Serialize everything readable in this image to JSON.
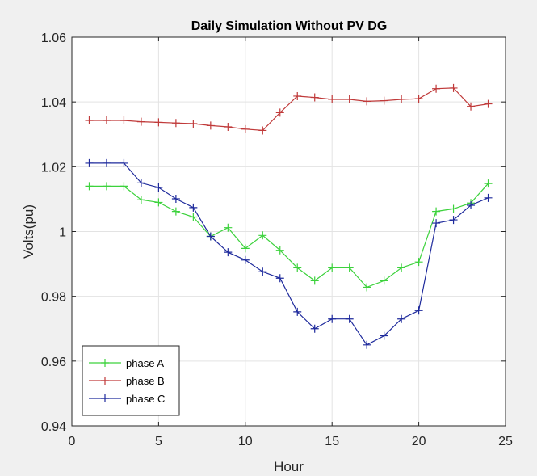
{
  "chart_data": {
    "type": "line",
    "title": "Daily Simulation Without PV DG",
    "xlabel": "Hour",
    "ylabel": "Volts(pu)",
    "xlim": [
      0,
      25
    ],
    "ylim": [
      0.94,
      1.06
    ],
    "x_ticks": [
      0,
      5,
      10,
      15,
      20,
      25
    ],
    "x_tick_labels": [
      "0",
      "5",
      "10",
      "15",
      "20",
      "25"
    ],
    "y_ticks": [
      0.94,
      0.96,
      0.98,
      1.0,
      1.02,
      1.04,
      1.06
    ],
    "y_tick_labels": [
      "0.94",
      "0.96",
      "0.98",
      "1",
      "1.02",
      "1.04",
      "1.06"
    ],
    "grid": true,
    "legend_position": "bottom-left",
    "marker": "+",
    "x": [
      1,
      2,
      3,
      4,
      5,
      6,
      7,
      8,
      9,
      10,
      11,
      12,
      13,
      14,
      15,
      16,
      17,
      18,
      19,
      20,
      21,
      22,
      23,
      24
    ],
    "series": [
      {
        "name": "phase A",
        "color": "#3cd23c",
        "values": [
          1.014,
          1.014,
          1.014,
          1.0098,
          1.009,
          1.0062,
          1.0045,
          0.9985,
          1.0012,
          0.9948,
          0.9988,
          0.9942,
          0.9888,
          0.9848,
          0.9888,
          0.9888,
          0.9828,
          0.9848,
          0.9888,
          0.9906,
          1.0062,
          1.007,
          1.0088,
          1.0148
        ]
      },
      {
        "name": "phase B",
        "color": "#c03a3a",
        "values": [
          1.0343,
          1.0343,
          1.0343,
          1.0339,
          1.0337,
          1.0335,
          1.0333,
          1.0327,
          1.0323,
          1.0316,
          1.0312,
          1.0367,
          1.0418,
          1.0414,
          1.0408,
          1.0408,
          1.0402,
          1.0404,
          1.0408,
          1.041,
          1.0441,
          1.0443,
          1.0386,
          1.0394
        ]
      },
      {
        "name": "phase C",
        "color": "#1e2a9c",
        "values": [
          1.0211,
          1.0211,
          1.0211,
          1.015,
          1.0136,
          1.0101,
          1.0074,
          0.9985,
          0.9936,
          0.9912,
          0.9876,
          0.9856,
          0.9752,
          0.97,
          0.973,
          0.973,
          0.965,
          0.9678,
          0.973,
          0.9756,
          1.0026,
          1.0036,
          1.0081,
          1.0104
        ]
      }
    ]
  }
}
